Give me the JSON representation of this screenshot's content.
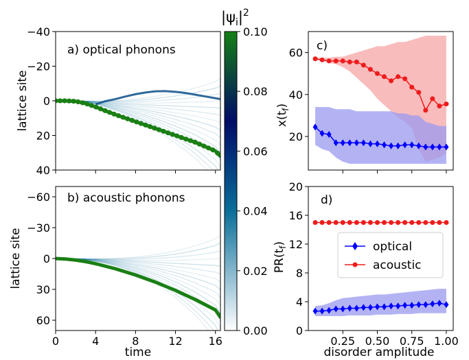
{
  "colors": {
    "optical": "#0000ff",
    "optical_fill": "#9a9af0",
    "acoustic": "#ee1c1c",
    "acoustic_fill": "#f7a5a5",
    "packet": "#1a7f14",
    "cmap": [
      "#ffffff",
      "#0a6e99",
      "#000c66",
      "#158015"
    ]
  },
  "colorbar": {
    "label": "|ψi|²",
    "ticks": [
      "0.00",
      "0.02",
      "0.04",
      "0.06",
      "0.08",
      "0.10"
    ],
    "range": [
      0,
      0.1
    ]
  },
  "chart_data": [
    {
      "panel": "a",
      "type": "heatmap",
      "title": "a) optical phonons",
      "xlabel": "",
      "ylabel": "lattice site",
      "xlim": [
        0,
        16.5
      ],
      "ylim": [
        40,
        -40
      ],
      "xticks": [
        0,
        4,
        8,
        12,
        16
      ],
      "yticks": [
        "−40",
        "−20",
        "0",
        "20",
        "40"
      ],
      "ytick_values": [
        -40,
        -20,
        0,
        20,
        40
      ],
      "packet_path": {
        "x": [
          0,
          1,
          2,
          3,
          4,
          5,
          6,
          7,
          8,
          9,
          10,
          11,
          12,
          13,
          14,
          15,
          16,
          16.5
        ],
        "y": [
          0,
          0,
          0.3,
          1.5,
          3.5,
          5.8,
          8,
          10,
          12,
          14,
          16,
          18,
          20,
          22,
          24,
          26.5,
          29,
          32
        ]
      },
      "ridge_path": {
        "x": [
          4,
          5,
          6,
          7,
          8,
          9,
          10,
          11,
          12,
          13,
          14,
          15,
          16,
          16.5
        ],
        "y": [
          2,
          0.2,
          -1,
          -2.5,
          -3.8,
          -4.8,
          -5.5,
          -5.6,
          -5.2,
          -4.5,
          -3.5,
          -2.5,
          -1.5,
          -1
        ]
      }
    },
    {
      "panel": "b",
      "type": "heatmap",
      "title": "b) acoustic phonons",
      "xlabel": "time",
      "ylabel": "lattice site",
      "xlim": [
        0,
        16.5
      ],
      "ylim": [
        70,
        -70
      ],
      "xticks": [
        0,
        4,
        8,
        12,
        16
      ],
      "yticks": [
        "−60",
        "−30",
        "0",
        "30",
        "60"
      ],
      "ytick_values": [
        -60,
        -30,
        0,
        30,
        60
      ],
      "packet_path": {
        "x": [
          0,
          1,
          2,
          3,
          4,
          5,
          6,
          7,
          8,
          9,
          10,
          11,
          12,
          13,
          14,
          15,
          16,
          16.5
        ],
        "y": [
          0,
          0.5,
          1.5,
          3,
          5,
          7.5,
          10,
          13,
          16,
          19.5,
          23,
          27,
          31,
          35.5,
          40,
          45,
          50,
          57
        ]
      }
    },
    {
      "panel": "c",
      "type": "line",
      "title": "c)",
      "xlabel": "",
      "ylabel": "x(t_f)",
      "xlim": [
        0,
        1.05
      ],
      "ylim": [
        4,
        70
      ],
      "yticks": [
        20,
        40,
        60
      ],
      "x": [
        0.05,
        0.1,
        0.15,
        0.2,
        0.25,
        0.3,
        0.35,
        0.4,
        0.45,
        0.5,
        0.55,
        0.6,
        0.65,
        0.7,
        0.75,
        0.8,
        0.85,
        0.9,
        0.95,
        1.0
      ],
      "series": [
        {
          "name": "optical",
          "values": [
            24.5,
            21.5,
            21,
            17,
            17,
            17,
            17,
            17,
            16.5,
            16.5,
            16,
            15.5,
            15.5,
            16,
            16,
            15.5,
            15,
            15,
            15,
            15
          ],
          "band_lower": [
            16,
            14,
            13,
            10,
            8,
            7,
            7,
            7,
            7,
            7,
            7,
            7,
            7,
            7,
            7,
            7,
            7,
            7,
            7,
            7
          ],
          "band_upper": [
            34,
            34,
            34,
            33,
            33,
            33,
            32,
            32,
            32,
            32,
            32,
            32,
            31,
            31,
            30,
            30,
            27,
            26,
            25,
            25
          ]
        },
        {
          "name": "acoustic",
          "values": [
            57,
            56.5,
            56,
            56,
            56,
            55.5,
            55.5,
            54,
            52,
            50,
            48.5,
            46.5,
            48.5,
            47.5,
            43.5,
            41,
            32.5,
            38,
            34.5,
            35.5
          ],
          "band_lower": [
            56.5,
            56,
            55,
            54.5,
            53,
            51,
            48,
            45,
            42,
            38,
            35,
            32,
            29,
            27,
            24,
            14,
            8,
            9,
            10,
            12
          ],
          "band_upper": [
            57.5,
            57.5,
            57.5,
            58,
            58,
            59,
            60,
            61,
            62,
            63,
            63,
            64,
            65,
            65,
            66,
            67,
            68,
            68,
            68,
            68
          ]
        }
      ]
    },
    {
      "panel": "d",
      "type": "line",
      "title": "d)",
      "xlabel": "disorder amplitude",
      "ylabel": "PR(t_f)",
      "xlim": [
        0,
        1.05
      ],
      "ylim": [
        0,
        20
      ],
      "yticks": [
        0,
        4,
        8,
        12,
        16,
        20
      ],
      "xticks": [
        "0.25",
        "0.50",
        "0.75",
        "1.00"
      ],
      "xtick_values": [
        0.25,
        0.5,
        0.75,
        1.0
      ],
      "legend": {
        "placement": "center-right"
      },
      "x": [
        0.05,
        0.1,
        0.15,
        0.2,
        0.25,
        0.3,
        0.35,
        0.4,
        0.45,
        0.5,
        0.55,
        0.6,
        0.65,
        0.7,
        0.75,
        0.8,
        0.85,
        0.9,
        0.95,
        1.0
      ],
      "series": [
        {
          "name": "optical",
          "values": [
            2.7,
            2.7,
            2.8,
            3.0,
            3.0,
            3.1,
            3.1,
            3.2,
            3.2,
            3.3,
            3.3,
            3.4,
            3.4,
            3.5,
            3.5,
            3.6,
            3.6,
            3.7,
            3.8,
            3.6
          ],
          "band_lower": [
            2.0,
            2.0,
            2.0,
            2.0,
            2.0,
            2.1,
            2.1,
            2.1,
            2.1,
            2.2,
            2.2,
            2.2,
            2.3,
            2.3,
            2.3,
            2.4,
            2.4,
            2.4,
            2.4,
            2.4
          ],
          "band_upper": [
            3.4,
            3.5,
            3.8,
            4.2,
            4.5,
            4.6,
            4.7,
            4.8,
            4.9,
            5.0,
            5.0,
            5.1,
            5.2,
            5.3,
            5.4,
            5.5,
            5.6,
            5.7,
            5.8,
            5.8
          ]
        },
        {
          "name": "acoustic",
          "values": [
            15,
            15,
            15,
            15,
            15,
            15,
            15,
            15,
            15,
            15,
            15,
            15,
            15,
            15,
            15,
            15,
            15,
            15,
            15,
            15
          ]
        }
      ]
    }
  ]
}
